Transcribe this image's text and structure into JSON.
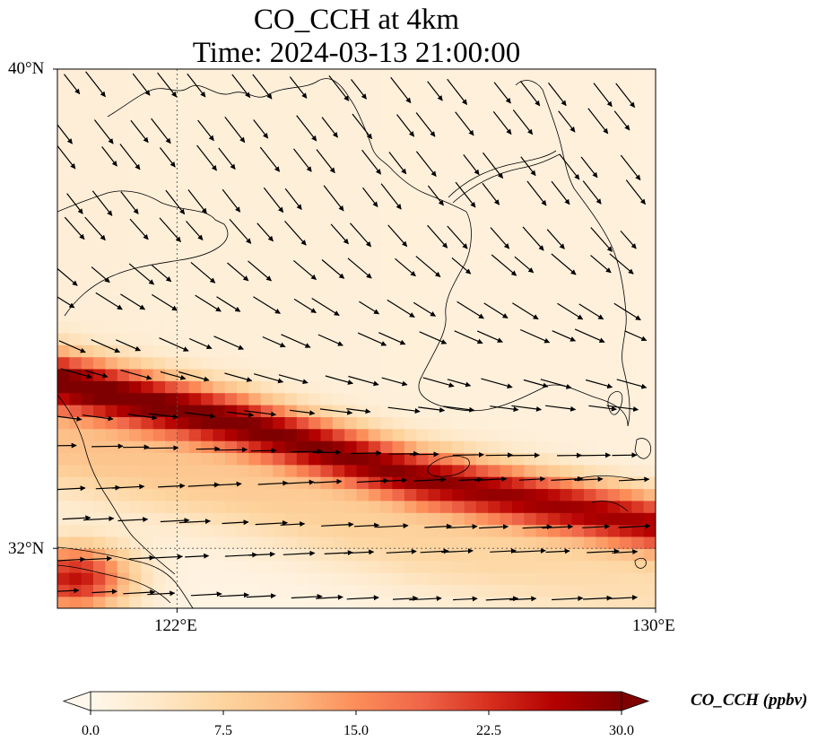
{
  "title_line1": "CO_CCH at 4km",
  "title_line2": "Time: 2024-03-13 21:00:00",
  "axes": {
    "lat_ticks": [
      {
        "value": 40,
        "label": "40°N"
      },
      {
        "value": 32,
        "label": "32°N"
      }
    ],
    "lon_ticks": [
      {
        "value": 122,
        "label": "122°E"
      },
      {
        "value": 130,
        "label": "130°E"
      }
    ],
    "lon_range": [
      120,
      130
    ],
    "lat_range": [
      31,
      40
    ],
    "gridlines": "dotted"
  },
  "colorbar": {
    "label": "CO_CCH (ppbv)",
    "ticks": [
      "0.0",
      "7.5",
      "15.0",
      "22.5",
      "30.0"
    ],
    "min": 0,
    "max": 30,
    "extend": "both",
    "colormap": "OrRd",
    "colors": [
      "#fff7ec",
      "#fee8c8",
      "#fdd49e",
      "#fdbb84",
      "#fc8d59",
      "#ef6548",
      "#d7301f",
      "#b30000",
      "#7f0000"
    ]
  },
  "chart_data": {
    "type": "heatmap",
    "variable": "CO_CCH",
    "units": "ppbv",
    "level": "4km",
    "time": "2024-03-13 21:00:00",
    "plume": {
      "description": "band of elevated CO_CCH oriented WNW-ESE",
      "peak_value": 30,
      "axis_points": [
        [
          120,
          34.8
        ],
        [
          123,
          34.1
        ],
        [
          126,
          33.2
        ],
        [
          128,
          32.8
        ],
        [
          130,
          32.4
        ]
      ],
      "secondary_max": [
        [
          120.3,
          31.5
        ],
        [
          121,
          31.3
        ]
      ]
    },
    "background_value": 1,
    "wind_vectors": "northwesterly in the north, westerly in the south"
  }
}
